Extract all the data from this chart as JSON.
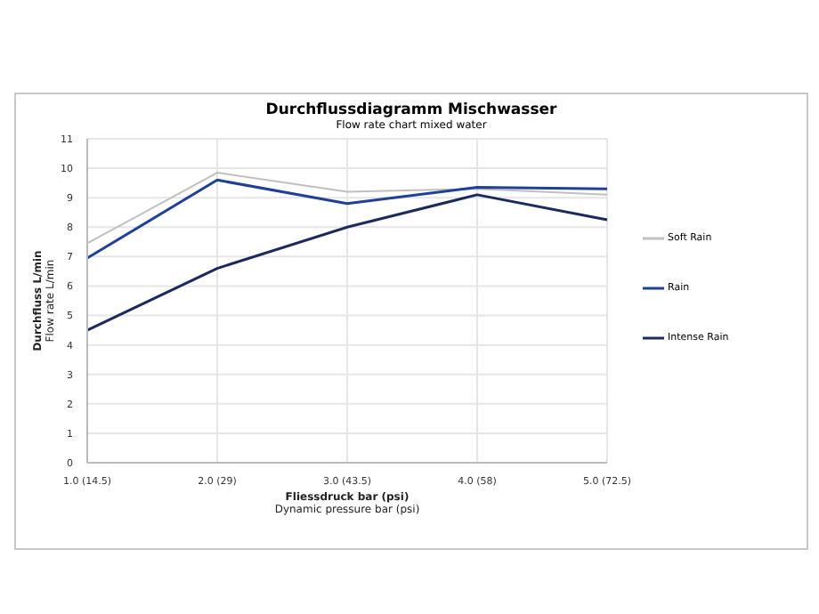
{
  "chart_data": {
    "type": "line",
    "title": "Durchflussdiagramm Mischwasser",
    "subtitle": "Flow rate chart mixed water",
    "xlabel": "Fliessdruck bar (psi)\nDynamic pressure bar (psi)",
    "ylabel": "Durchfluss L/min\nFlow rate L/min",
    "categories": [
      "1.0 (14.5)",
      "2.0 (29)",
      "3.0 (43.5)",
      "4.0 (58)",
      "5.0 (72.5)"
    ],
    "series": [
      {
        "name": "Soft Rain",
        "color": "#c0c0c0",
        "values": [
          7.45,
          9.85,
          9.2,
          9.3,
          9.1
        ]
      },
      {
        "name": "Rain",
        "color": "#1f3f99",
        "values": [
          6.95,
          9.6,
          8.8,
          9.35,
          9.3
        ]
      },
      {
        "name": "Intense Rain",
        "color": "#1a2a5e",
        "values": [
          4.5,
          6.6,
          8.0,
          9.1,
          8.25
        ]
      }
    ],
    "ylim": [
      0,
      11
    ],
    "yticks": [
      0,
      1,
      2,
      3,
      4,
      5,
      6,
      7,
      8,
      9,
      10,
      11
    ],
    "grid": true,
    "legend": "right",
    "marker": "none",
    "line_style": "solid"
  }
}
